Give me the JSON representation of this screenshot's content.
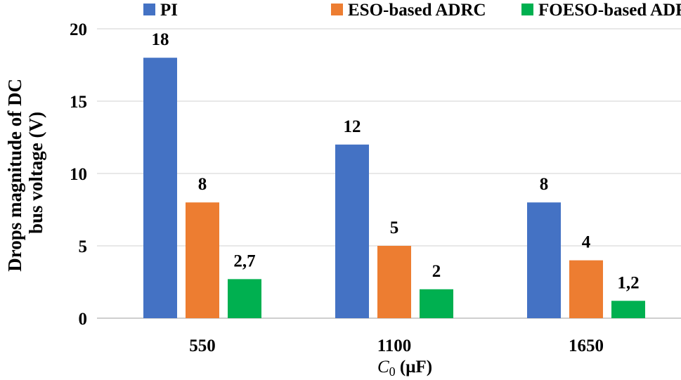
{
  "chart_data": {
    "type": "bar",
    "title": "",
    "categories": [
      "550",
      "1100",
      "1650"
    ],
    "series": [
      {
        "name": "PI",
        "color": "#4472c4",
        "values": [
          18,
          12,
          8
        ],
        "labels": [
          "18",
          "12",
          "8"
        ]
      },
      {
        "name": "ESO-based ADRC",
        "color": "#ed7d31",
        "values": [
          8,
          5,
          4
        ],
        "labels": [
          "8",
          "5",
          "4"
        ]
      },
      {
        "name": "FOESO-based ADRC",
        "color": "#00b050",
        "values": [
          2.7,
          2,
          1.2
        ],
        "labels": [
          "2,7",
          "2",
          "1,2"
        ]
      }
    ],
    "xlabel": "C0 (μF)",
    "xlabel_main": "C",
    "xlabel_sub": "0",
    "xlabel_unit": " (μF)",
    "ylabel_lines": [
      "Drops magnitude of DC",
      "bus voltage (V)"
    ],
    "ylim": [
      0,
      20
    ],
    "yticks": [
      0,
      5,
      10,
      15,
      20
    ],
    "grid": true,
    "legend_position": "top"
  }
}
